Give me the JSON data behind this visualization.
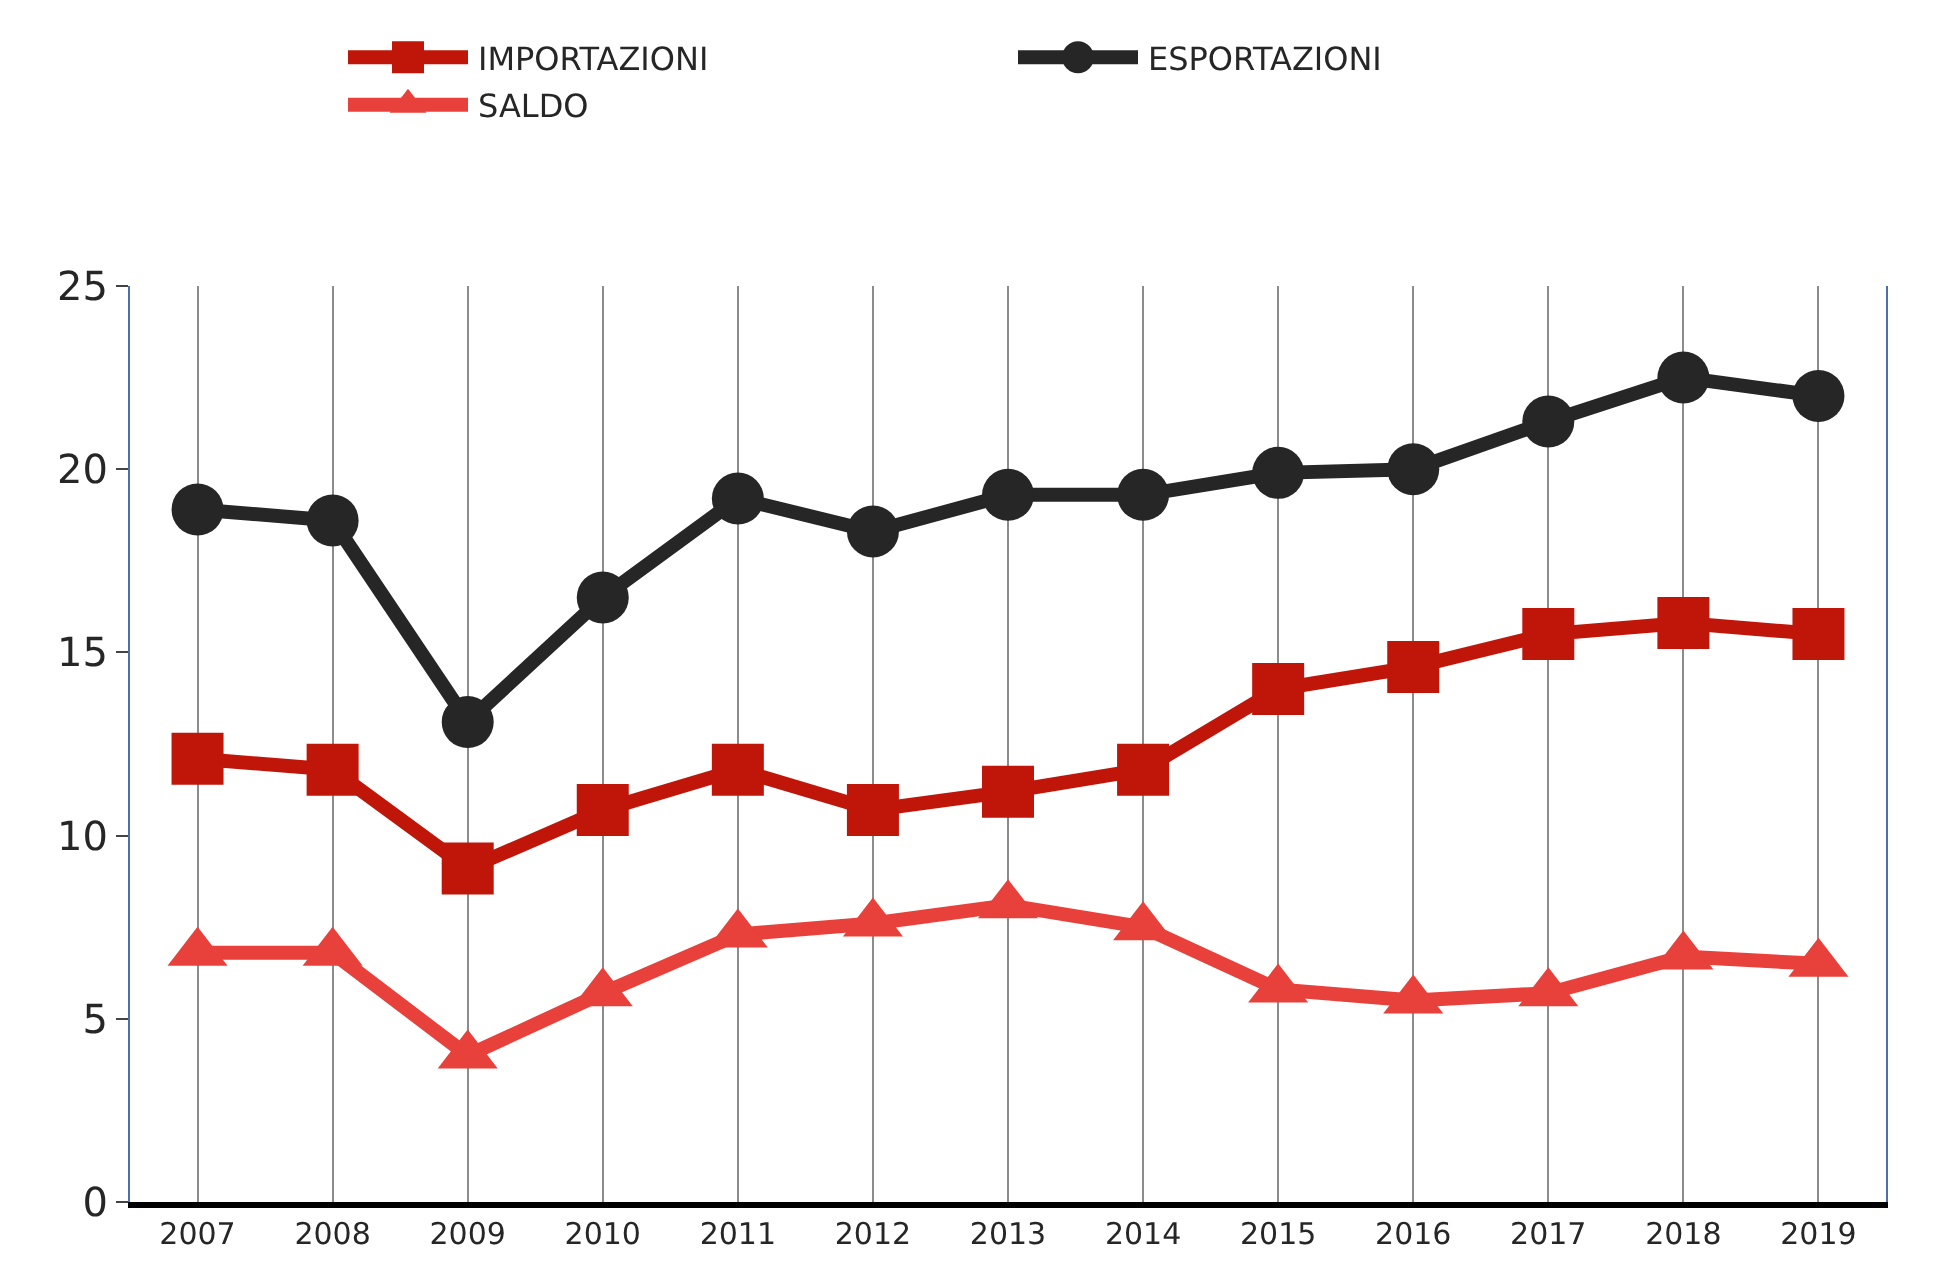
{
  "chart_data": {
    "type": "line",
    "categories": [
      "2007",
      "2008",
      "2009",
      "2010",
      "2011",
      "2012",
      "2013",
      "2014",
      "2015",
      "2016",
      "2017",
      "2018",
      "2019"
    ],
    "series": [
      {
        "name": "IMPORTAZIONI",
        "color": "#c0160a",
        "marker": "square",
        "values": [
          12.1,
          11.8,
          9.1,
          10.7,
          11.8,
          10.7,
          11.2,
          11.8,
          14.0,
          14.6,
          15.5,
          15.8,
          15.5
        ]
      },
      {
        "name": "ESPORTAZIONI",
        "color": "#262626",
        "marker": "circle",
        "values": [
          18.9,
          18.6,
          13.1,
          16.5,
          19.2,
          18.3,
          19.3,
          19.3,
          19.9,
          20.0,
          21.3,
          22.5,
          22.0
        ]
      },
      {
        "name": "SALDO",
        "color": "#e8403a",
        "marker": "triangle",
        "values": [
          6.8,
          6.8,
          4.0,
          5.7,
          7.3,
          7.6,
          8.1,
          7.5,
          5.8,
          5.5,
          5.7,
          6.7,
          6.5
        ]
      }
    ],
    "ylim": [
      0,
      25
    ],
    "yticks": [
      0,
      5,
      10,
      15,
      20,
      25
    ],
    "grid": "x",
    "legend": "top",
    "line_style": "solid"
  }
}
